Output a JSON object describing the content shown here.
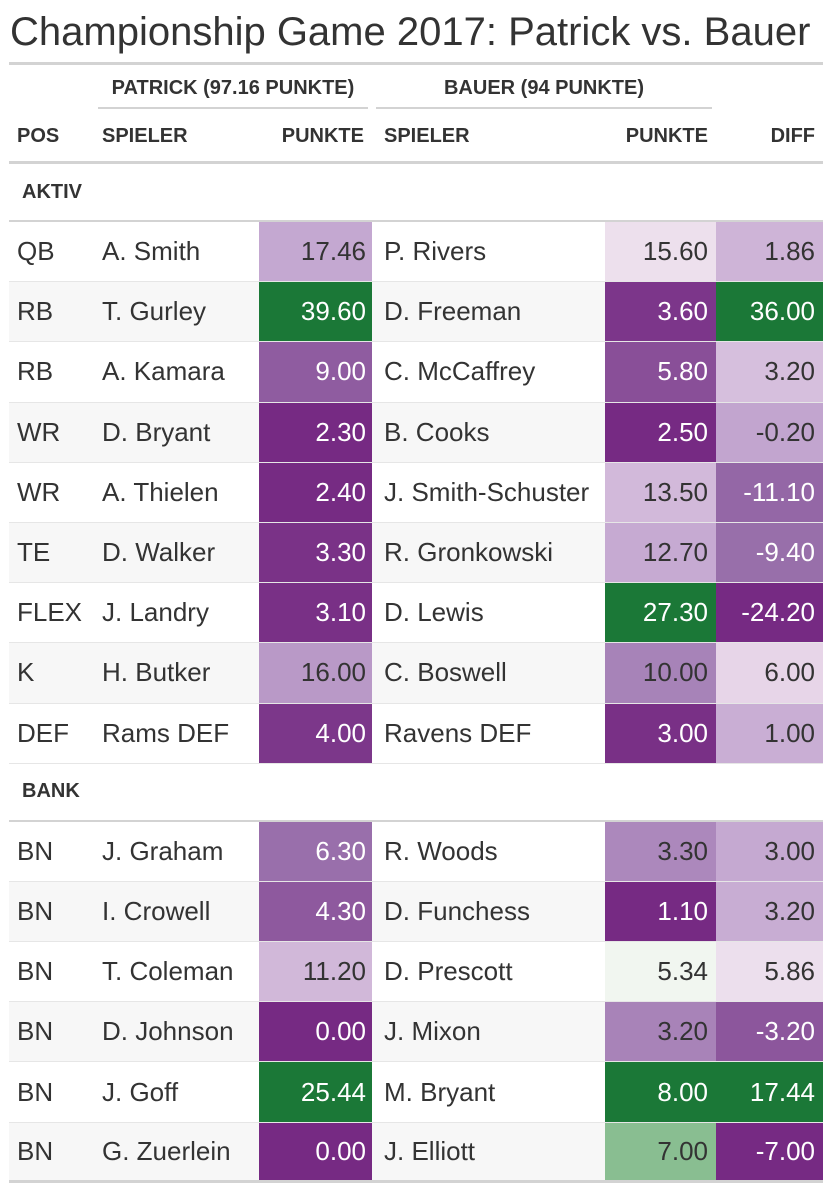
{
  "title": "Championship Game 2017: Patrick vs. Bauer",
  "spanners": {
    "patrick": "PATRICK (97.16 PUNKTE)",
    "bauer": "BAUER (94 PUNKTE)"
  },
  "headers": {
    "pos": "POS",
    "spieler1": "SPIELER",
    "punkte1": "PUNKTE",
    "spieler2": "SPIELER",
    "punkte2": "PUNKTE",
    "diff": "DIFF"
  },
  "groups": {
    "aktiv": "AKTIV",
    "bank": "BANK"
  },
  "colors": {
    "dark_purple": "#762a83",
    "green": "#1b7837",
    "white": "#f7f7f7"
  },
  "aktiv_rows": [
    {
      "pos": "QB",
      "p1": "A. Smith",
      "s1": "17.46",
      "p2": "P. Rivers",
      "s2": "15.60",
      "diff": "1.86"
    },
    {
      "pos": "RB",
      "p1": "T. Gurley",
      "s1": "39.60",
      "p2": "D. Freeman",
      "s2": "3.60",
      "diff": "36.00"
    },
    {
      "pos": "RB",
      "p1": "A. Kamara",
      "s1": "9.00",
      "p2": "C. McCaffrey",
      "s2": "5.80",
      "diff": "3.20"
    },
    {
      "pos": "WR",
      "p1": "D. Bryant",
      "s1": "2.30",
      "p2": "B. Cooks",
      "s2": "2.50",
      "diff": "-0.20"
    },
    {
      "pos": "WR",
      "p1": "A. Thielen",
      "s1": "2.40",
      "p2": "J. Smith-Schuster",
      "s2": "13.50",
      "diff": "-11.10"
    },
    {
      "pos": "TE",
      "p1": "D. Walker",
      "s1": "3.30",
      "p2": "R. Gronkowski",
      "s2": "12.70",
      "diff": "-9.40"
    },
    {
      "pos": "FLEX",
      "p1": "J. Landry",
      "s1": "3.10",
      "p2": "D. Lewis",
      "s2": "27.30",
      "diff": "-24.20"
    },
    {
      "pos": "K",
      "p1": "H. Butker",
      "s1": "16.00",
      "p2": "C. Boswell",
      "s2": "10.00",
      "diff": "6.00"
    },
    {
      "pos": "DEF",
      "p1": "Rams DEF",
      "s1": "4.00",
      "p2": "Ravens DEF",
      "s2": "3.00",
      "diff": "1.00"
    }
  ],
  "bank_rows": [
    {
      "pos": "BN",
      "p1": "J. Graham",
      "s1": "6.30",
      "p2": "R. Woods",
      "s2": "3.30",
      "diff": "3.00"
    },
    {
      "pos": "BN",
      "p1": "I. Crowell",
      "s1": "4.30",
      "p2": "D. Funchess",
      "s2": "1.10",
      "diff": "3.20"
    },
    {
      "pos": "BN",
      "p1": "T. Coleman",
      "s1": "11.20",
      "p2": "D. Prescott",
      "s2": "5.34",
      "diff": "5.86"
    },
    {
      "pos": "BN",
      "p1": "D. Johnson",
      "s1": "0.00",
      "p2": "J. Mixon",
      "s2": "3.20",
      "diff": "-3.20"
    },
    {
      "pos": "BN",
      "p1": "J. Goff",
      "s1": "25.44",
      "p2": "M. Bryant",
      "s2": "8.00",
      "diff": "17.44"
    },
    {
      "pos": "BN",
      "p1": "G. Zuerlein",
      "s1": "0.00",
      "p2": "J. Elliott",
      "s2": "7.00",
      "diff": "-7.00"
    }
  ]
}
